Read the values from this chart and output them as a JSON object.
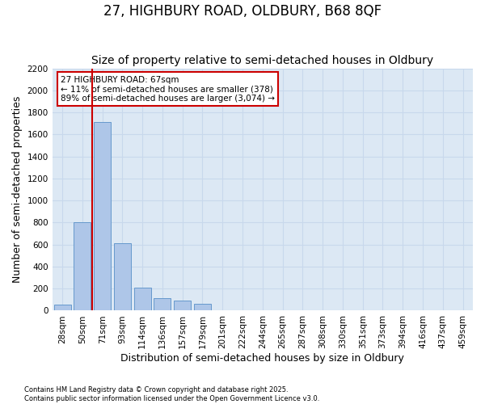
{
  "title1": "27, HIGHBURY ROAD, OLDBURY, B68 8QF",
  "title2": "Size of property relative to semi-detached houses in Oldbury",
  "xlabel": "Distribution of semi-detached houses by size in Oldbury",
  "ylabel": "Number of semi-detached properties",
  "bin_labels": [
    "28sqm",
    "50sqm",
    "71sqm",
    "93sqm",
    "114sqm",
    "136sqm",
    "157sqm",
    "179sqm",
    "201sqm",
    "222sqm",
    "244sqm",
    "265sqm",
    "287sqm",
    "308sqm",
    "330sqm",
    "351sqm",
    "373sqm",
    "394sqm",
    "416sqm",
    "437sqm",
    "459sqm"
  ],
  "bar_values": [
    55,
    800,
    1710,
    610,
    210,
    110,
    90,
    60,
    5,
    0,
    0,
    0,
    0,
    0,
    0,
    0,
    0,
    0,
    0,
    0,
    0
  ],
  "bar_color": "#aec6e8",
  "bar_edge_color": "#6699cc",
  "grid_color": "#c8d8ec",
  "bg_color": "#dce8f4",
  "property_line_color": "#cc0000",
  "property_line_x": 1.5,
  "annotation_text": "27 HIGHBURY ROAD: 67sqm\n← 11% of semi-detached houses are smaller (378)\n89% of semi-detached houses are larger (3,074) →",
  "annotation_box_edgecolor": "#cc0000",
  "ylim": [
    0,
    2200
  ],
  "yticks": [
    0,
    200,
    400,
    600,
    800,
    1000,
    1200,
    1400,
    1600,
    1800,
    2000,
    2200
  ],
  "footnote1": "Contains HM Land Registry data © Crown copyright and database right 2025.",
  "footnote2": "Contains public sector information licensed under the Open Government Licence v3.0.",
  "title1_fontsize": 12,
  "title2_fontsize": 10,
  "tick_fontsize": 7.5,
  "label_fontsize": 9,
  "annotation_fontsize": 7.5
}
